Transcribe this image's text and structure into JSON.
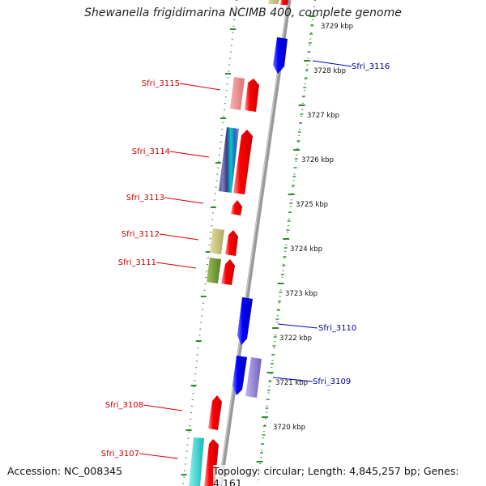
{
  "title": "Shewanella frigidimarina NCIMB 400, complete genome",
  "footer": {
    "accession": "Accession: NC_008345",
    "summary": "Topology: circular; Length: 4,845,257 bp; Genes: 4,161"
  },
  "colors": {
    "forward": "#ff0000",
    "reverse": "#0000ff",
    "forward_label": "#cc0000",
    "reverse_label": "#000099",
    "ticks": "#2e8b2e",
    "backbone": "#999999"
  },
  "ruler_labels": [
    "3729 kbp",
    "3728 kbp",
    "3727 kbp",
    "3726 kbp",
    "3725 kbp",
    "3724 kbp",
    "3723 kbp",
    "3722 kbp",
    "3721 kbp",
    "3720 kbp"
  ],
  "gene_labels": [
    {
      "name": "Sfri_3116",
      "strand": "reverse"
    },
    {
      "name": "Sfri_3115",
      "strand": "forward"
    },
    {
      "name": "Sfri_3114",
      "strand": "forward"
    },
    {
      "name": "Sfri_3113",
      "strand": "forward"
    },
    {
      "name": "Sfri_3112",
      "strand": "forward"
    },
    {
      "name": "Sfri_3111",
      "strand": "forward"
    },
    {
      "name": "Sfri_3110",
      "strand": "reverse"
    },
    {
      "name": "Sfri_3109",
      "strand": "reverse"
    },
    {
      "name": "Sfri_3108",
      "strand": "forward"
    },
    {
      "name": "Sfri_3107",
      "strand": "forward"
    }
  ]
}
